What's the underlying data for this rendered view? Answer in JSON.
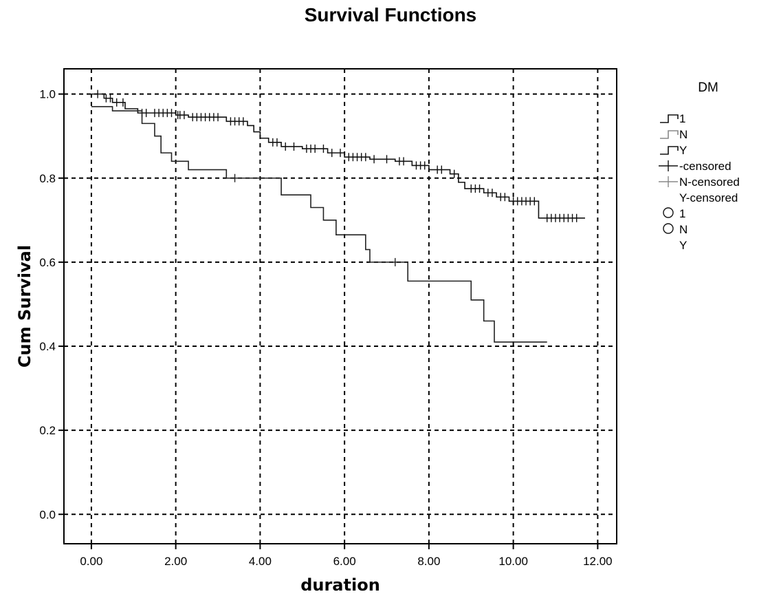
{
  "chart_data": {
    "type": "line",
    "title": "Survival Functions",
    "xlabel": "duration",
    "ylabel": "Cum Survival",
    "xlim": [
      -0.65,
      12.45
    ],
    "ylim": [
      -0.07,
      1.06
    ],
    "x_ticks": [
      0,
      2,
      4,
      6,
      8,
      10,
      12
    ],
    "x_tick_labels": [
      "0.00",
      "2.00",
      "4.00",
      "6.00",
      "8.00",
      "10.00",
      "12.00"
    ],
    "y_ticks": [
      0,
      0.2,
      0.4,
      0.6,
      0.8,
      1.0
    ],
    "y_tick_labels": [
      "0.0",
      "0.2",
      "0.4",
      "0.6",
      "0.8",
      "1.0"
    ],
    "grid": true,
    "legend": {
      "title": "DM",
      "placement": "right",
      "entries": [
        "1",
        "N",
        "Y",
        "-censored",
        "N-censored",
        "Y-censored",
        "1",
        "N",
        "Y"
      ]
    },
    "series": [
      {
        "name": "1",
        "color": "#111111",
        "steps": [
          [
            0,
            1.0
          ],
          [
            0.3,
            0.99
          ],
          [
            0.5,
            0.98
          ],
          [
            0.8,
            0.965
          ],
          [
            1.1,
            0.955
          ],
          [
            2.0,
            0.95
          ],
          [
            2.3,
            0.945
          ],
          [
            3.2,
            0.935
          ],
          [
            3.7,
            0.925
          ],
          [
            3.85,
            0.91
          ],
          [
            4.0,
            0.895
          ],
          [
            4.2,
            0.885
          ],
          [
            4.5,
            0.875
          ],
          [
            5.0,
            0.87
          ],
          [
            5.6,
            0.86
          ],
          [
            6.0,
            0.85
          ],
          [
            6.6,
            0.845
          ],
          [
            7.2,
            0.84
          ],
          [
            7.6,
            0.83
          ],
          [
            8.0,
            0.82
          ],
          [
            8.5,
            0.81
          ],
          [
            8.7,
            0.79
          ],
          [
            8.85,
            0.775
          ],
          [
            9.3,
            0.765
          ],
          [
            9.6,
            0.755
          ],
          [
            9.9,
            0.745
          ],
          [
            10.6,
            0.705
          ],
          [
            11.7,
            0.705
          ]
        ],
        "censored": [
          0.15,
          0.35,
          0.45,
          0.6,
          0.75,
          1.2,
          1.3,
          1.5,
          1.6,
          1.7,
          1.8,
          1.9,
          2.05,
          2.1,
          2.2,
          2.4,
          2.5,
          2.6,
          2.7,
          2.8,
          2.9,
          3.0,
          3.3,
          3.4,
          3.5,
          3.6,
          4.3,
          4.4,
          4.6,
          4.8,
          5.1,
          5.2,
          5.3,
          5.5,
          5.7,
          5.9,
          6.1,
          6.2,
          6.3,
          6.4,
          6.5,
          6.7,
          7.0,
          7.3,
          7.4,
          7.7,
          7.8,
          7.9,
          8.2,
          8.3,
          8.6,
          9.0,
          9.1,
          9.2,
          9.4,
          9.5,
          9.7,
          9.8,
          10.0,
          10.1,
          10.2,
          10.3,
          10.4,
          10.5,
          10.8,
          10.9,
          11.0,
          11.1,
          11.2,
          11.3,
          11.4,
          11.5
        ]
      },
      {
        "name": "Y",
        "color": "#222222",
        "steps": [
          [
            0,
            0.97
          ],
          [
            0.5,
            0.96
          ],
          [
            1.2,
            0.93
          ],
          [
            1.5,
            0.9
          ],
          [
            1.65,
            0.86
          ],
          [
            1.9,
            0.84
          ],
          [
            2.3,
            0.82
          ],
          [
            3.2,
            0.8
          ],
          [
            4.5,
            0.76
          ],
          [
            5.2,
            0.73
          ],
          [
            5.5,
            0.7
          ],
          [
            5.8,
            0.665
          ],
          [
            6.5,
            0.63
          ],
          [
            6.6,
            0.6
          ],
          [
            7.5,
            0.555
          ],
          [
            9.0,
            0.51
          ],
          [
            9.3,
            0.46
          ],
          [
            9.55,
            0.41
          ],
          [
            10.8,
            0.41
          ]
        ],
        "censored": [
          3.4,
          7.2
        ]
      }
    ]
  }
}
